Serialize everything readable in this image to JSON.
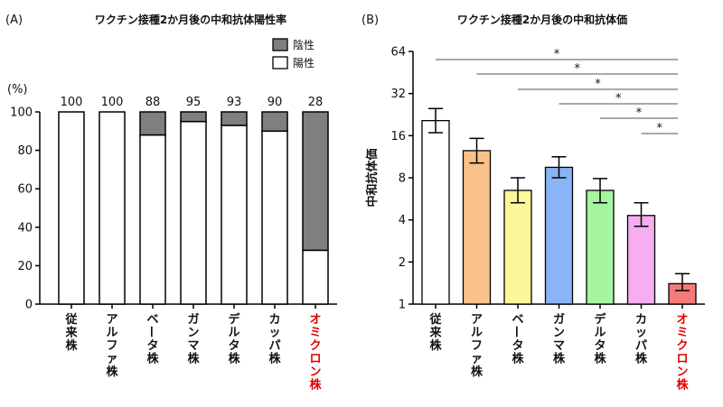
{
  "chart_data": [
    {
      "type": "bar",
      "panel_label": "(A)",
      "title": "ワクチン接種2か月後の中和抗体陽性率",
      "ylabel": "(%)",
      "ylim": [
        0,
        100
      ],
      "yticks": [
        0,
        20,
        40,
        60,
        80,
        100
      ],
      "stacked": true,
      "categories": [
        "従来株",
        "アルファ株",
        "ベータ株",
        "ガンマ株",
        "デルタ株",
        "カッパ株",
        "オミクロン株"
      ],
      "highlight_category": "オミクロン株",
      "highlight_color": "#e00000",
      "series": [
        {
          "name": "陽性",
          "color": "#ffffff",
          "values": [
            100,
            100,
            88,
            95,
            93,
            90,
            28
          ]
        },
        {
          "name": "陰性",
          "color": "#7f7f7f",
          "values": [
            0,
            0,
            12,
            5,
            7,
            10,
            72
          ]
        }
      ],
      "data_labels": [
        "100",
        "100",
        "88",
        "95",
        "93",
        "90",
        "28"
      ],
      "legend": {
        "position": "top-right",
        "items": [
          {
            "label": "陰性",
            "color": "#7f7f7f"
          },
          {
            "label": "陽性",
            "color": "#ffffff"
          }
        ]
      }
    },
    {
      "type": "bar",
      "panel_label": "(B)",
      "title": "ワクチン接種2か月後の中和抗体価",
      "ylabel": "中和抗体価",
      "yscale": "log2",
      "ylim": [
        1,
        64
      ],
      "yticks": [
        1,
        2,
        4,
        8,
        16,
        32,
        64
      ],
      "categories": [
        "従来株",
        "アルファ株",
        "ベータ株",
        "ガンマ株",
        "デルタ株",
        "カッパ株",
        "オミクロン株"
      ],
      "highlight_category": "オミクロン株",
      "highlight_color": "#e00000",
      "values": [
        20.5,
        12.5,
        6.5,
        9.5,
        6.5,
        4.3,
        1.4
      ],
      "error_low": [
        16.8,
        10.2,
        5.3,
        8.0,
        5.3,
        3.6,
        1.25
      ],
      "error_high": [
        25.0,
        15.3,
        8.0,
        11.3,
        7.9,
        5.3,
        1.65
      ],
      "colors": [
        "#ffffff",
        "#f9c28a",
        "#fbf79a",
        "#8ab4f8",
        "#a6f5a0",
        "#f6aef0",
        "#f47a7a"
      ],
      "significance": [
        {
          "from": "従来株",
          "to": "オミクロン株",
          "label": "*"
        },
        {
          "from": "アルファ株",
          "to": "オミクロン株",
          "label": "*"
        },
        {
          "from": "ベータ株",
          "to": "オミクロン株",
          "label": "*"
        },
        {
          "from": "ガンマ株",
          "to": "オミクロン株",
          "label": "*"
        },
        {
          "from": "デルタ株",
          "to": "オミクロン株",
          "label": "*"
        },
        {
          "from": "カッパ株",
          "to": "オミクロン株",
          "label": "*"
        }
      ]
    }
  ]
}
